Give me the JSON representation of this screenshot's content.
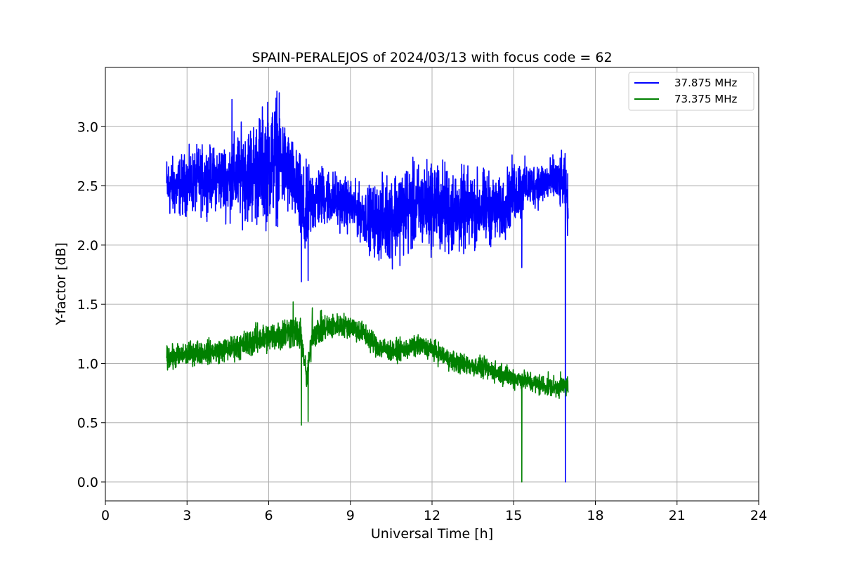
{
  "chart_data": {
    "type": "line",
    "title": "SPAIN-PERALEJOS of 2024/03/13 with focus code = 62",
    "xlabel": "Universal Time [h]",
    "ylabel": "Y-factor [dB]",
    "xlim": [
      0,
      24
    ],
    "ylim": [
      -0.16,
      3.5
    ],
    "xticks": [
      0,
      3,
      6,
      9,
      12,
      15,
      18,
      21,
      24
    ],
    "xtick_labels": [
      "0",
      "3",
      "6",
      "9",
      "12",
      "15",
      "18",
      "21",
      "24"
    ],
    "yticks": [
      0.0,
      0.5,
      1.0,
      1.5,
      2.0,
      2.5,
      3.0
    ],
    "ytick_labels": [
      "0.0",
      "0.5",
      "1.0",
      "1.5",
      "2.0",
      "2.5",
      "3.0"
    ],
    "grid": true,
    "legend_position": "top-right",
    "series": [
      {
        "name": "37.875 MHz",
        "color": "#0000ff",
        "x": [
          2.25,
          2.5,
          3.0,
          3.5,
          4.0,
          4.5,
          5.0,
          5.5,
          6.0,
          6.3,
          6.5,
          6.8,
          7.0,
          7.2,
          7.3,
          7.5,
          7.8,
          8.0,
          8.5,
          9.0,
          9.5,
          10.0,
          10.5,
          11.0,
          11.5,
          12.0,
          12.5,
          13.0,
          13.5,
          14.0,
          14.5,
          15.0,
          15.3,
          15.5,
          16.0,
          16.5,
          16.9,
          17.0
        ],
        "y": [
          2.5,
          2.48,
          2.52,
          2.55,
          2.57,
          2.55,
          2.6,
          2.62,
          2.7,
          2.75,
          2.68,
          2.58,
          2.48,
          2.35,
          2.2,
          2.35,
          2.4,
          2.42,
          2.38,
          2.33,
          2.25,
          2.2,
          2.25,
          2.3,
          2.32,
          2.35,
          2.3,
          2.28,
          2.3,
          2.32,
          2.28,
          2.45,
          2.48,
          2.5,
          2.52,
          2.55,
          2.5,
          2.3
        ],
        "spread": [
          0.2,
          0.2,
          0.2,
          0.22,
          0.2,
          0.25,
          0.3,
          0.35,
          0.4,
          0.4,
          0.32,
          0.28,
          0.25,
          0.3,
          0.35,
          0.25,
          0.22,
          0.2,
          0.18,
          0.17,
          0.18,
          0.25,
          0.3,
          0.3,
          0.28,
          0.3,
          0.3,
          0.28,
          0.25,
          0.25,
          0.2,
          0.22,
          0.2,
          0.15,
          0.15,
          0.15,
          0.2,
          0.2
        ],
        "spikes": [
          [
            7.2,
            1.69
          ],
          [
            7.45,
            1.7
          ],
          [
            15.3,
            1.81
          ],
          [
            16.9,
            0.0
          ],
          [
            6.3,
            3.3
          ],
          [
            4.65,
            3.23
          ]
        ]
      },
      {
        "name": "73.375 MHz",
        "color": "#008000",
        "x": [
          2.25,
          2.5,
          3.0,
          3.5,
          4.0,
          4.5,
          5.0,
          5.5,
          6.0,
          6.5,
          6.9,
          7.2,
          7.4,
          7.6,
          8.0,
          8.5,
          9.0,
          9.5,
          10.0,
          10.5,
          11.0,
          11.5,
          12.0,
          12.5,
          13.0,
          13.5,
          14.0,
          14.5,
          15.0,
          15.5,
          16.0,
          16.5,
          17.0
        ],
        "y": [
          1.05,
          1.05,
          1.08,
          1.1,
          1.1,
          1.12,
          1.15,
          1.2,
          1.22,
          1.25,
          1.28,
          1.22,
          0.85,
          1.25,
          1.3,
          1.32,
          1.32,
          1.25,
          1.15,
          1.1,
          1.12,
          1.15,
          1.12,
          1.05,
          1.0,
          0.98,
          0.95,
          0.92,
          0.88,
          0.85,
          0.82,
          0.8,
          0.82
        ],
        "spread": [
          0.08,
          0.08,
          0.08,
          0.08,
          0.08,
          0.08,
          0.09,
          0.1,
          0.1,
          0.11,
          0.12,
          0.1,
          0.1,
          0.1,
          0.1,
          0.08,
          0.08,
          0.08,
          0.08,
          0.07,
          0.07,
          0.07,
          0.07,
          0.07,
          0.07,
          0.07,
          0.07,
          0.07,
          0.07,
          0.07,
          0.07,
          0.07,
          0.07
        ],
        "spikes": [
          [
            7.2,
            0.48
          ],
          [
            7.45,
            0.51
          ],
          [
            15.3,
            0.0
          ],
          [
            6.9,
            1.52
          ],
          [
            7.6,
            1.47
          ]
        ]
      }
    ]
  }
}
